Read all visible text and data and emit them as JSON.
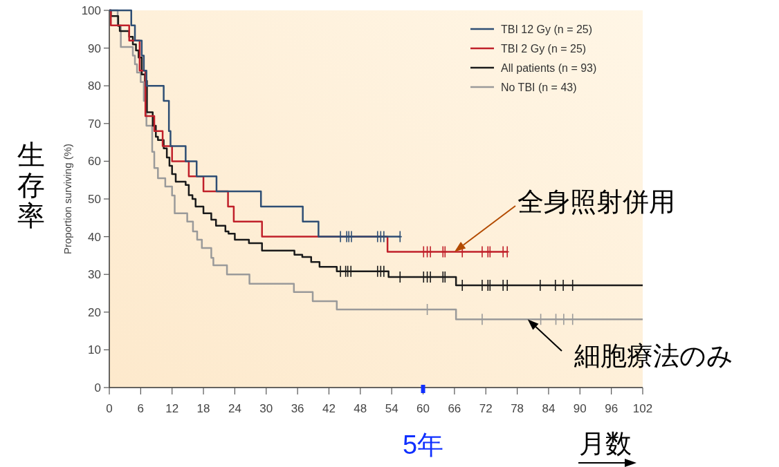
{
  "chart_data": {
    "type": "step",
    "xlabel": "月数",
    "ylabel": "Proportion surviving (%)",
    "xlim": [
      0,
      102
    ],
    "xticks": [
      0,
      6,
      12,
      18,
      24,
      30,
      36,
      42,
      48,
      54,
      60,
      66,
      72,
      78,
      84,
      90,
      96,
      102
    ],
    "ylim": [
      0,
      100
    ],
    "yticks": [
      0,
      10,
      20,
      30,
      40,
      50,
      60,
      70,
      80,
      90,
      100
    ],
    "grid": false,
    "legend": "top right",
    "annotations": [
      "生存率",
      {
        "text": "全身照射併用",
        "x": 66,
        "y": 36
      },
      {
        "text": "細胞療法のみ",
        "x": 80,
        "y": 18.1
      },
      {
        "text": "5年",
        "x": 60,
        "y": 0
      }
    ],
    "series": [
      {
        "name": "TBI 12 Gy (n = 25)",
        "color": "#2e4e74",
        "type": "step",
        "x": [
          0,
          4.2,
          4.9,
          6.2,
          6.6,
          7.1,
          10.4,
          11.4,
          11.7,
          14.6,
          16.7,
          20.5,
          29,
          37,
          40,
          55.6
        ],
        "values": [
          100,
          96,
          92,
          88,
          84,
          80,
          76,
          68,
          64,
          60,
          56,
          52,
          48,
          44,
          40,
          40
        ]
      },
      {
        "name": "TBI 2 Gy (n = 25)",
        "color": "#c0202a",
        "type": "step",
        "x": [
          0,
          0.3,
          3.8,
          5.8,
          6.9,
          8.6,
          10.2,
          12,
          15.2,
          18,
          22.7,
          23.8,
          29.2,
          53.2,
          76.1
        ],
        "values": [
          100,
          96,
          92,
          84,
          72,
          68,
          64,
          60,
          56,
          52,
          48,
          44,
          40,
          36,
          36
        ]
      },
      {
        "name": "All patients (n = 93)",
        "color": "#1a1a1a",
        "type": "step",
        "x": [
          0,
          0.3,
          1.7,
          2,
          3.8,
          4.5,
          5.1,
          5.6,
          6.2,
          6.8,
          7.2,
          8.3,
          8.9,
          9.3,
          10.4,
          11,
          11.5,
          12,
          12.7,
          14.6,
          15.2,
          15.9,
          16.5,
          18,
          19.5,
          20.4,
          22.2,
          22.8,
          24,
          26.7,
          29.2,
          35.4,
          36.9,
          38.6,
          40.2,
          43.5,
          53.4,
          66.3,
          102
        ],
        "values": [
          100,
          98.5,
          95.9,
          94.5,
          93,
          91,
          89.4,
          87.5,
          83,
          81.3,
          73,
          69.4,
          66.5,
          65.6,
          63.4,
          61,
          58.8,
          56.6,
          54.6,
          53.7,
          51,
          50,
          48,
          46.2,
          44.5,
          42.9,
          41.4,
          40.8,
          39.2,
          38.3,
          36.3,
          35.2,
          34.6,
          33.3,
          32,
          30.8,
          29.3,
          27.1,
          27.1
        ]
      },
      {
        "name": "No TBI (n = 43)",
        "color": "#9a9a9a",
        "type": "step",
        "x": [
          0,
          1.6,
          2.2,
          4.5,
          4.9,
          5.3,
          6,
          6.6,
          7.1,
          8.2,
          8.6,
          9.3,
          10.7,
          12,
          12.5,
          14.9,
          16,
          16.8,
          17.7,
          19.5,
          19.9,
          22.5,
          26.8,
          35.3,
          38.9,
          43.5,
          66.3,
          102
        ],
        "values": [
          100,
          96,
          90.3,
          88,
          85.7,
          83.5,
          81,
          76,
          69.4,
          62.5,
          58.2,
          55.5,
          53.3,
          50.9,
          46.2,
          44,
          41.4,
          39.2,
          37,
          34.4,
          32.4,
          30,
          27.5,
          25.3,
          22.9,
          20.7,
          18.1,
          18.1
        ]
      },
      {
        "color": "#2e4e74",
        "type": "scatter",
        "marker": "cross",
        "x": [
          44.2,
          45.4,
          45.8,
          46.3,
          51.3,
          51.9,
          52.5,
          55.6
        ],
        "values": [
          40,
          40,
          40,
          40,
          40,
          40,
          40,
          40
        ]
      },
      {
        "color": "#c0202a",
        "type": "scatter",
        "marker": "cross",
        "x": [
          60.1,
          60.8,
          61.4,
          63.8,
          64.2,
          67.5,
          71.3,
          72.4,
          72.8,
          75.3,
          76.1
        ],
        "values": [
          36,
          36,
          36,
          36,
          36,
          36,
          36,
          36,
          36,
          36,
          36
        ]
      },
      {
        "color": "#1a1a1a",
        "type": "scatter",
        "marker": "cross",
        "x": [
          44.2,
          45.2,
          45.6,
          46.2,
          51.3,
          51.9,
          52.5,
          55.6,
          60.1,
          60.8,
          61.4,
          63.8,
          64.2,
          67.5,
          71.3,
          72.4,
          72.8,
          75.3,
          76.1,
          82.4,
          85.3,
          86.8,
          88.6
        ],
        "values": [
          30.8,
          30.8,
          30.8,
          30.8,
          30.8,
          30.8,
          30.8,
          29.3,
          29.3,
          29.3,
          29.3,
          29.3,
          29.3,
          27.1,
          27.1,
          27.1,
          27.1,
          27.1,
          27.1,
          27.1,
          27.1,
          27.1,
          27.1
        ]
      },
      {
        "color": "#9a9a9a",
        "type": "scatter",
        "marker": "cross",
        "x": [
          60.8,
          71.3,
          82.5,
          85.4,
          86.9,
          88.6
        ],
        "values": [
          20.7,
          18.1,
          18.1,
          18.1,
          18.1,
          18.1
        ]
      }
    ]
  }
}
